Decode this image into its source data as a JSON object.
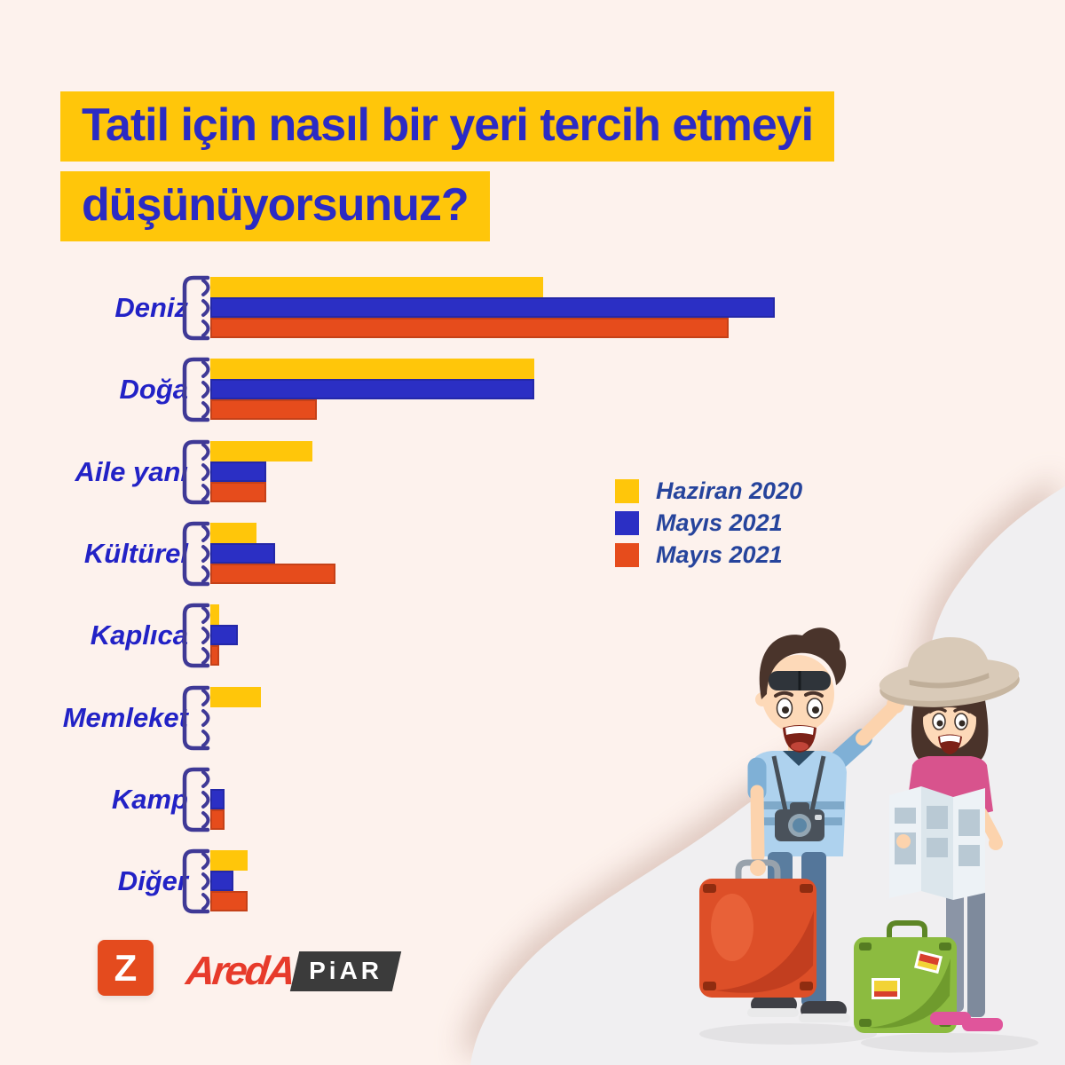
{
  "title": {
    "line1": "Tatil için nasıl bir yeri tercih etmeyi",
    "line2": "düşünüyorsunuz?"
  },
  "colors": {
    "background": "#fdf2ed",
    "blob": "#f0eff1",
    "title_highlight": "#ffc60a",
    "title_text": "#2b2bc4",
    "category_label": "#2222c6",
    "legend_label": "#26449c",
    "brace": "#3f3996",
    "series_yellow": "#ffc60a",
    "series_blue": "#2b2fc4",
    "series_orange": "#e64c1c",
    "z_logo_bg": "#e44b1e",
    "areda_red": "#e73b2b",
    "piar_bg": "#3b3b3b"
  },
  "chart_data": {
    "type": "bar",
    "orientation": "horizontal",
    "title": "Tatil için nasıl bir yeri tercih etmeyi düşünüyorsunuz?",
    "categories": [
      "Deniz",
      "Doğa",
      "Aile yanı",
      "Kültürel",
      "Kaplıca",
      "Memleket",
      "Kamp",
      "Diğer"
    ],
    "series": [
      {
        "name": "Haziran 2020",
        "color": "#ffc60a",
        "values": [
          36,
          35,
          11,
          5,
          1,
          5.5,
          0,
          4
        ]
      },
      {
        "name": "Mayıs 2021",
        "color": "#2b2fc4",
        "values": [
          61,
          35,
          6,
          7,
          3,
          0,
          1.5,
          2.5
        ]
      },
      {
        "name": "Mayıs 2021",
        "color": "#e64c1c",
        "values": [
          56,
          11.5,
          6,
          13.5,
          1,
          0,
          1.5,
          4
        ]
      }
    ],
    "xlim": [
      0,
      61
    ],
    "value_note": "percent, estimated from bar lengths (no axis or data labels shown)",
    "xlabel": "",
    "ylabel": "",
    "grid": false,
    "legend_position": "center-right"
  },
  "legend": {
    "items": [
      {
        "label": "Haziran 2020",
        "color": "#ffc60a"
      },
      {
        "label": "Mayıs 2021",
        "color": "#2b2fc4"
      },
      {
        "label": "Mayıs 2021",
        "color": "#e64c1c"
      }
    ]
  },
  "footer": {
    "z_logo_letter": "Z",
    "areda_text": "AredA",
    "piar_text": "PiAR"
  },
  "illustration": {
    "alt": "Cartoon travelers: man with sunglasses, camera and red suitcase waving; woman in sun hat reading a map beside a green suitcase"
  }
}
